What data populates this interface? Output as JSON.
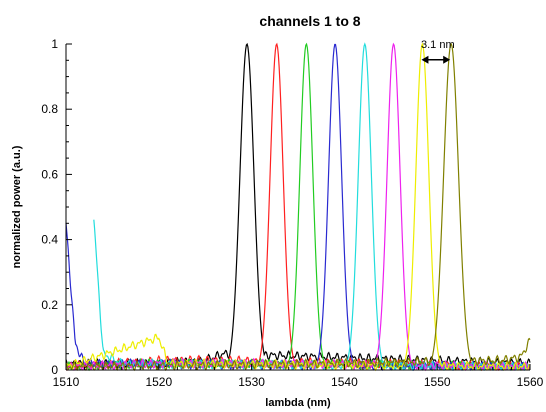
{
  "chart_data": {
    "type": "line",
    "title": "channels 1 to 8",
    "xlabel": "lambda (nm)",
    "ylabel": "normalized power (a.u.)",
    "xlim": [
      1510,
      1560
    ],
    "ylim": [
      0,
      1
    ],
    "x_ticks": [
      1510,
      1520,
      1530,
      1540,
      1550,
      1560
    ],
    "y_ticks": [
      0,
      0.2,
      0.4,
      0.6,
      0.8,
      1
    ],
    "x_tick_labels": [
      "1510",
      "1520",
      "1530",
      "1540",
      "1550",
      "1560"
    ],
    "y_tick_labels": [
      "0",
      "0.2",
      "0.4",
      "0.6",
      "0.8",
      "1"
    ],
    "grid": false,
    "legend": "none",
    "annotation": {
      "text": "3.1 nm",
      "from_x": 1548.3,
      "to_x": 1551.4,
      "y": 0.97
    },
    "series": [
      {
        "color": "#000000",
        "peak_x": 1529.5,
        "width": 0.75,
        "noise": [
          [
            1510,
            0.02
          ],
          [
            1520,
            0.02
          ],
          [
            1525,
            0.03
          ],
          [
            1527,
            0.05
          ],
          [
            1560,
            0.02
          ]
        ]
      },
      {
        "color": "#ff2020",
        "peak_x": 1532.7,
        "width": 0.7,
        "noise": [
          [
            1510,
            0.01
          ],
          [
            1515,
            0.02
          ],
          [
            1521,
            0.03
          ],
          [
            1526,
            0.03
          ],
          [
            1560,
            0.01
          ]
        ]
      },
      {
        "color": "#22cc22",
        "peak_x": 1535.9,
        "width": 0.7,
        "noise": [
          [
            1510,
            0.01
          ],
          [
            1518,
            0.02
          ],
          [
            1530,
            0.02
          ],
          [
            1560,
            0.01
          ]
        ]
      },
      {
        "color": "#2a2ad0",
        "peak_x": 1539.0,
        "width": 0.7,
        "noise": [
          [
            1510,
            0.45
          ],
          [
            1511,
            0.08
          ],
          [
            1512,
            0.02
          ],
          [
            1560,
            0.01
          ]
        ]
      },
      {
        "color": "#22dddd",
        "peak_x": 1542.2,
        "width": 0.7,
        "noise": [
          [
            1513,
            0.46
          ],
          [
            1514,
            0.05
          ],
          [
            1516,
            0.02
          ],
          [
            1560,
            0.01
          ]
        ]
      },
      {
        "color": "#ee22ee",
        "peak_x": 1545.3,
        "width": 0.7,
        "noise": [
          [
            1510,
            0.01
          ],
          [
            1520,
            0.02
          ],
          [
            1530,
            0.02
          ],
          [
            1560,
            0.01
          ]
        ]
      },
      {
        "color": "#eeee00",
        "peak_x": 1548.4,
        "width": 0.7,
        "noise": [
          [
            1510,
            0.01
          ],
          [
            1520,
            0.1
          ],
          [
            1521,
            0.02
          ],
          [
            1560,
            0.01
          ]
        ]
      },
      {
        "color": "#808000",
        "peak_x": 1551.5,
        "width": 0.8,
        "noise": [
          [
            1510,
            0.01
          ],
          [
            1540,
            0.02
          ],
          [
            1557,
            0.03
          ],
          [
            1559,
            0.04
          ],
          [
            1560,
            0.09
          ]
        ]
      }
    ]
  }
}
